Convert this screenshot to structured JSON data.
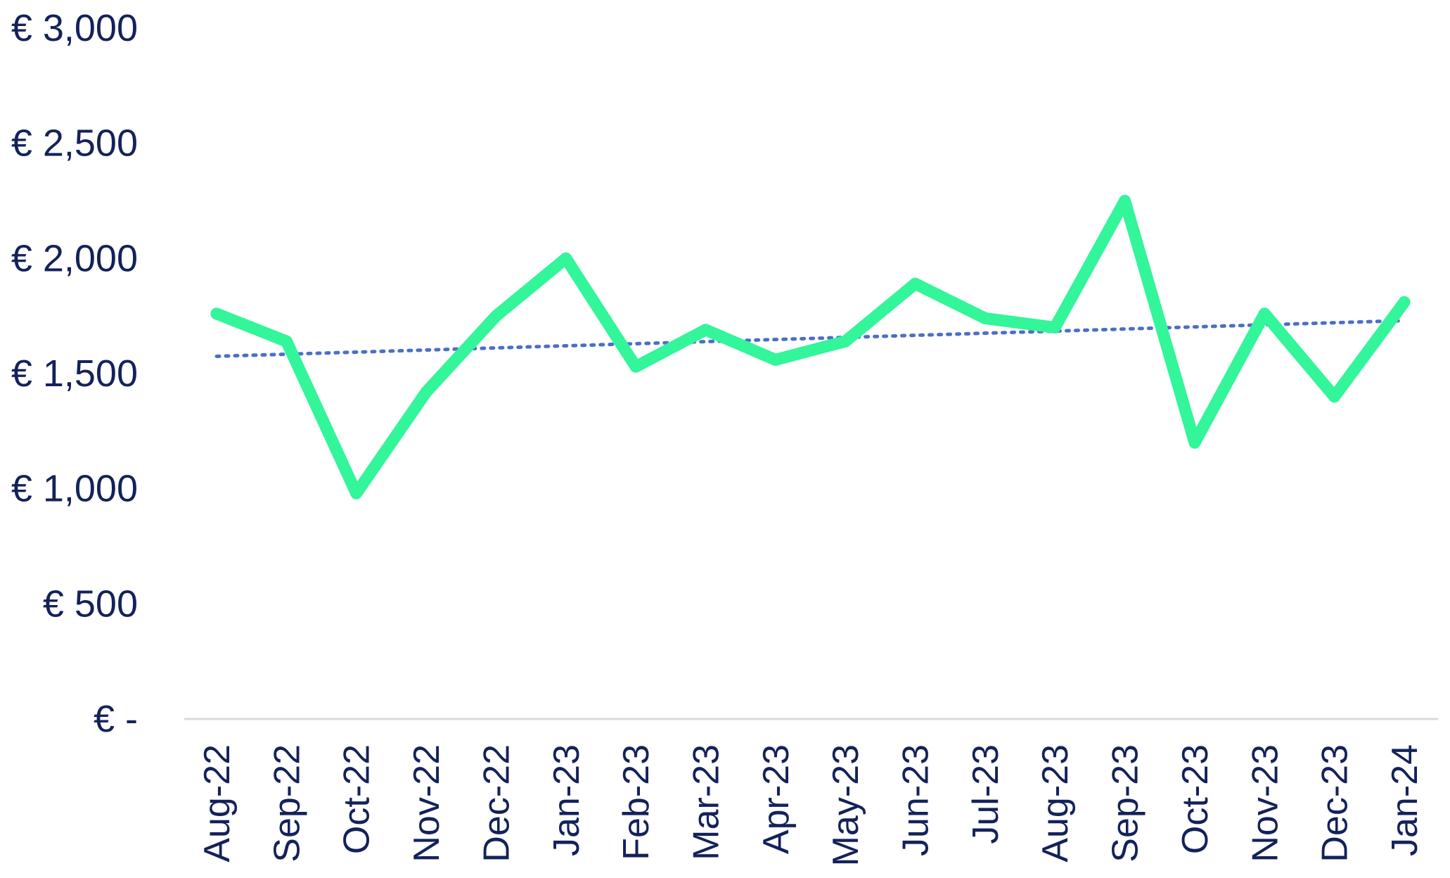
{
  "chart_data": {
    "type": "line",
    "title": "",
    "xlabel": "",
    "ylabel": "",
    "categories": [
      "Aug-22",
      "Sep-22",
      "Oct-22",
      "Nov-22",
      "Dec-22",
      "Jan-23",
      "Feb-23",
      "Mar-23",
      "Apr-23",
      "May-23",
      "Jun-23",
      "Jul-23",
      "Aug-23",
      "Sep-23",
      "Oct-23",
      "Nov-23",
      "Dec-23",
      "Jan-24"
    ],
    "series": [
      {
        "values": [
          1760,
          1640,
          980,
          1420,
          1750,
          2000,
          1530,
          1690,
          1560,
          1640,
          1890,
          1740,
          1700,
          2250,
          1200,
          1760,
          1400,
          1810
        ],
        "color": "#33f59a",
        "style": "solid"
      },
      {
        "trendline": true,
        "values_start_end": [
          1575,
          1730
        ],
        "color": "#4a6fc7",
        "style": "dotted"
      }
    ],
    "ylim": [
      0,
      3000
    ],
    "y_ticks": [
      0,
      500,
      1000,
      1500,
      2000,
      2500,
      3000
    ],
    "y_tick_labels": [
      "€ -",
      "€ 500",
      "€ 1,000",
      "€ 1,500",
      "€ 2,000",
      "€ 2,500",
      "€ 3,000"
    ],
    "grid": false,
    "legend": "none",
    "axis_color": "#d9d9d9",
    "text_color": "#13225a"
  }
}
